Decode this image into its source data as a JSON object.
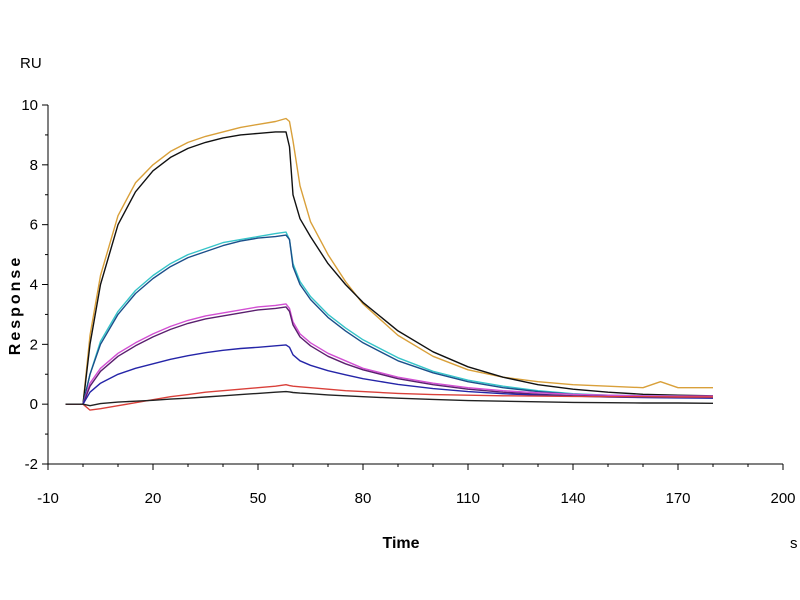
{
  "chart_data": {
    "type": "line",
    "title": "",
    "xlabel": "Time",
    "x_unit": "s",
    "ylabel": "Response",
    "y_unit": "RU",
    "xlim": [
      -10,
      200
    ],
    "ylim": [
      -2,
      10
    ],
    "x_ticks": [
      -10,
      20,
      50,
      80,
      110,
      140,
      170,
      200
    ],
    "y_ticks": [
      -2,
      0,
      2,
      4,
      6,
      8,
      10
    ],
    "grid": false,
    "legend": "none",
    "series": [
      {
        "color": "#d9a03a",
        "x": [
          0,
          2,
          5,
          10,
          15,
          20,
          25,
          30,
          35,
          40,
          45,
          50,
          55,
          58,
          59,
          60,
          62,
          65,
          70,
          75,
          80,
          90,
          100,
          110,
          120,
          130,
          140,
          150,
          160,
          165,
          170,
          175,
          180
        ],
        "y": [
          0,
          2.3,
          4.3,
          6.3,
          7.4,
          8.0,
          8.45,
          8.75,
          8.95,
          9.1,
          9.25,
          9.35,
          9.45,
          9.55,
          9.45,
          8.8,
          7.3,
          6.1,
          5.0,
          4.1,
          3.35,
          2.3,
          1.6,
          1.15,
          0.9,
          0.75,
          0.65,
          0.6,
          0.55,
          0.75,
          0.55,
          0.55,
          0.55
        ]
      },
      {
        "color": "#111111",
        "x": [
          0,
          2,
          5,
          10,
          15,
          20,
          25,
          30,
          35,
          40,
          45,
          50,
          55,
          58,
          59,
          60,
          62,
          65,
          70,
          75,
          80,
          90,
          100,
          110,
          120,
          130,
          140,
          150,
          160,
          170,
          180
        ],
        "y": [
          0,
          2.0,
          4.0,
          6.0,
          7.1,
          7.8,
          8.25,
          8.55,
          8.75,
          8.9,
          9.0,
          9.05,
          9.1,
          9.1,
          8.6,
          7.0,
          6.2,
          5.6,
          4.7,
          4.0,
          3.4,
          2.45,
          1.75,
          1.25,
          0.9,
          0.65,
          0.5,
          0.4,
          0.33,
          0.3,
          0.28
        ]
      },
      {
        "color": "#36c4c9",
        "x": [
          0,
          2,
          5,
          10,
          15,
          20,
          25,
          30,
          35,
          40,
          45,
          50,
          55,
          58,
          59,
          60,
          62,
          65,
          70,
          75,
          80,
          90,
          100,
          110,
          120,
          130,
          140,
          150,
          160,
          170,
          180
        ],
        "y": [
          0,
          1.0,
          2.1,
          3.1,
          3.8,
          4.3,
          4.7,
          5.0,
          5.2,
          5.4,
          5.5,
          5.6,
          5.7,
          5.75,
          5.5,
          4.7,
          4.1,
          3.6,
          3.0,
          2.55,
          2.15,
          1.55,
          1.1,
          0.8,
          0.6,
          0.45,
          0.35,
          0.3,
          0.28,
          0.27,
          0.26
        ]
      },
      {
        "color": "#1b4f8a",
        "x": [
          0,
          2,
          5,
          10,
          15,
          20,
          25,
          30,
          35,
          40,
          45,
          50,
          55,
          58,
          59,
          60,
          62,
          65,
          70,
          75,
          80,
          90,
          100,
          110,
          120,
          130,
          140,
          150,
          160,
          170,
          180
        ],
        "y": [
          0,
          1.0,
          2.0,
          3.0,
          3.7,
          4.2,
          4.6,
          4.9,
          5.1,
          5.3,
          5.45,
          5.55,
          5.6,
          5.65,
          5.5,
          4.6,
          4.0,
          3.5,
          2.9,
          2.45,
          2.05,
          1.45,
          1.05,
          0.75,
          0.55,
          0.42,
          0.33,
          0.28,
          0.25,
          0.23,
          0.22
        ]
      },
      {
        "color": "#d24fd3",
        "x": [
          0,
          2,
          5,
          10,
          15,
          20,
          25,
          30,
          35,
          40,
          45,
          50,
          55,
          58,
          59,
          60,
          62,
          65,
          70,
          75,
          80,
          90,
          100,
          110,
          120,
          130,
          140,
          150,
          160,
          170,
          180
        ],
        "y": [
          0,
          0.7,
          1.2,
          1.7,
          2.05,
          2.35,
          2.6,
          2.8,
          2.95,
          3.05,
          3.15,
          3.25,
          3.3,
          3.35,
          3.2,
          2.75,
          2.35,
          2.05,
          1.7,
          1.45,
          1.2,
          0.9,
          0.7,
          0.55,
          0.45,
          0.38,
          0.33,
          0.3,
          0.28,
          0.27,
          0.27
        ]
      },
      {
        "color": "#5a1f6e",
        "x": [
          0,
          2,
          5,
          10,
          15,
          20,
          25,
          30,
          35,
          40,
          45,
          50,
          55,
          58,
          59,
          60,
          62,
          65,
          70,
          75,
          80,
          90,
          100,
          110,
          120,
          130,
          140,
          150,
          160,
          170,
          180
        ],
        "y": [
          0,
          0.6,
          1.1,
          1.6,
          1.95,
          2.25,
          2.5,
          2.7,
          2.85,
          2.95,
          3.05,
          3.15,
          3.2,
          3.25,
          3.1,
          2.65,
          2.25,
          1.95,
          1.6,
          1.35,
          1.15,
          0.85,
          0.65,
          0.5,
          0.4,
          0.33,
          0.28,
          0.25,
          0.23,
          0.22,
          0.21
        ]
      },
      {
        "color": "#2525a8",
        "x": [
          0,
          2,
          5,
          10,
          15,
          20,
          25,
          30,
          35,
          40,
          45,
          50,
          55,
          58,
          59,
          60,
          62,
          65,
          70,
          75,
          80,
          90,
          100,
          110,
          120,
          130,
          140,
          150,
          160,
          170,
          180
        ],
        "y": [
          0,
          0.4,
          0.7,
          1.0,
          1.2,
          1.35,
          1.5,
          1.62,
          1.72,
          1.8,
          1.86,
          1.9,
          1.95,
          1.98,
          1.9,
          1.65,
          1.45,
          1.3,
          1.12,
          0.98,
          0.85,
          0.66,
          0.52,
          0.42,
          0.35,
          0.3,
          0.27,
          0.24,
          0.22,
          0.21,
          0.2
        ]
      },
      {
        "color": "#d9403a",
        "x": [
          0,
          2,
          5,
          10,
          15,
          20,
          25,
          30,
          35,
          40,
          45,
          50,
          55,
          58,
          59,
          60,
          62,
          65,
          70,
          75,
          80,
          90,
          100,
          110,
          120,
          130,
          140,
          150,
          160,
          170,
          180
        ],
        "y": [
          0,
          -0.2,
          -0.15,
          -0.05,
          0.05,
          0.15,
          0.25,
          0.32,
          0.4,
          0.45,
          0.5,
          0.55,
          0.6,
          0.65,
          0.62,
          0.6,
          0.58,
          0.55,
          0.5,
          0.45,
          0.42,
          0.36,
          0.32,
          0.3,
          0.28,
          0.27,
          0.26,
          0.25,
          0.25,
          0.24,
          0.24
        ]
      },
      {
        "color": "#222222",
        "x": [
          0,
          2,
          5,
          10,
          15,
          20,
          25,
          30,
          35,
          40,
          45,
          50,
          55,
          58,
          59,
          60,
          62,
          65,
          70,
          75,
          80,
          90,
          100,
          110,
          120,
          130,
          140,
          150,
          160,
          170,
          180
        ],
        "y": [
          0,
          -0.05,
          0.02,
          0.07,
          0.1,
          0.13,
          0.17,
          0.2,
          0.24,
          0.28,
          0.32,
          0.36,
          0.4,
          0.42,
          0.41,
          0.39,
          0.37,
          0.35,
          0.31,
          0.28,
          0.25,
          0.2,
          0.16,
          0.12,
          0.1,
          0.08,
          0.06,
          0.05,
          0.04,
          0.04,
          0.03
        ]
      }
    ]
  }
}
